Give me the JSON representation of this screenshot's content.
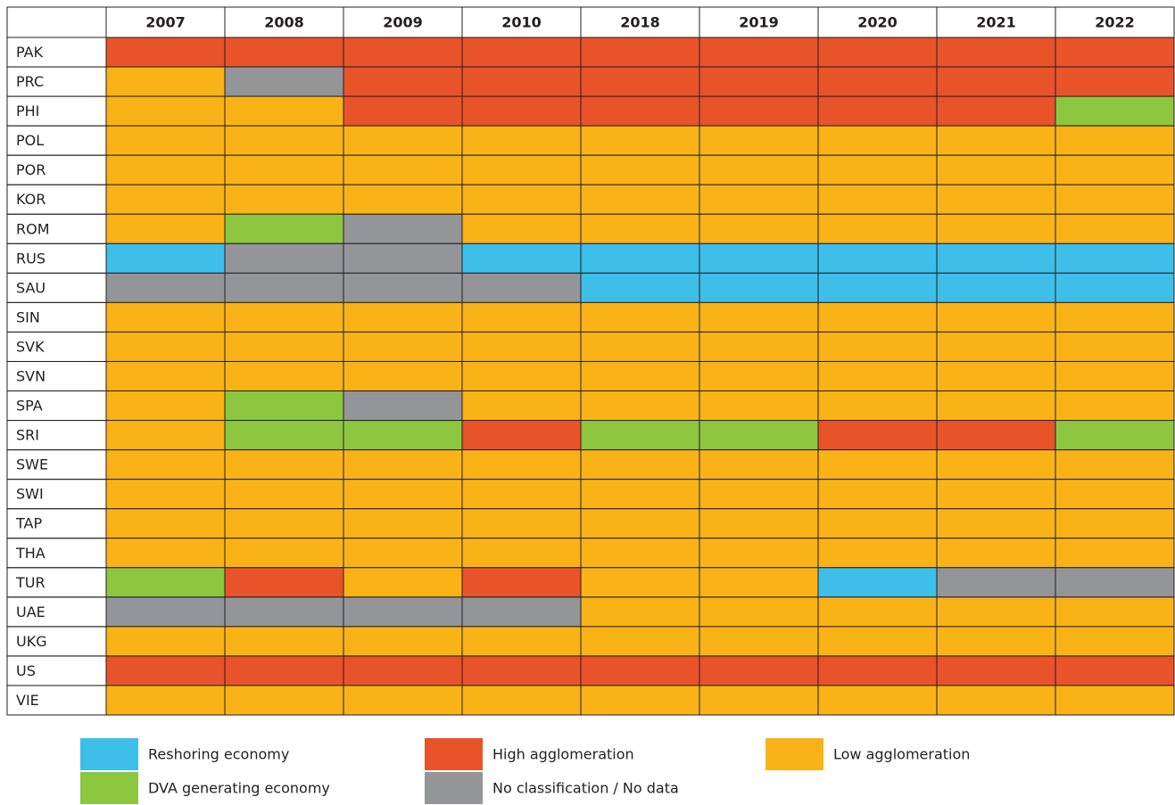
{
  "chart_data": {
    "type": "heatmap",
    "x": [
      "2007",
      "2008",
      "2009",
      "2010",
      "2018",
      "2019",
      "2020",
      "2021",
      "2022"
    ],
    "y": [
      "PAK",
      "PRC",
      "PHI",
      "POL",
      "POR",
      "KOR",
      "ROM",
      "RUS",
      "SAU",
      "SIN",
      "SVK",
      "SVN",
      "SPA",
      "SRI",
      "SWE",
      "SWI",
      "TAP",
      "THA",
      "TUR",
      "UAE",
      "UKG",
      "US",
      "VIE"
    ],
    "legend": [
      {
        "name": "Reshoring economy",
        "color": "#3dbfea"
      },
      {
        "name": "DVA generating economy",
        "color": "#8dc63f"
      },
      {
        "name": "High agglomeration",
        "color": "#e9532a"
      },
      {
        "name": "No classification / No data",
        "color": "#939598"
      },
      {
        "name": "Low agglomeration",
        "color": "#f9b317"
      }
    ],
    "cells": [
      [
        2,
        2,
        2,
        2,
        2,
        2,
        2,
        2,
        2
      ],
      [
        4,
        3,
        2,
        2,
        2,
        2,
        2,
        2,
        2
      ],
      [
        4,
        4,
        2,
        2,
        2,
        2,
        2,
        2,
        1
      ],
      [
        4,
        4,
        4,
        4,
        4,
        4,
        4,
        4,
        4
      ],
      [
        4,
        4,
        4,
        4,
        4,
        4,
        4,
        4,
        4
      ],
      [
        4,
        4,
        4,
        4,
        4,
        4,
        4,
        4,
        4
      ],
      [
        4,
        1,
        3,
        4,
        4,
        4,
        4,
        4,
        4
      ],
      [
        0,
        3,
        3,
        0,
        0,
        0,
        0,
        0,
        0
      ],
      [
        3,
        3,
        3,
        3,
        0,
        0,
        0,
        0,
        0
      ],
      [
        4,
        4,
        4,
        4,
        4,
        4,
        4,
        4,
        4
      ],
      [
        4,
        4,
        4,
        4,
        4,
        4,
        4,
        4,
        4
      ],
      [
        4,
        4,
        4,
        4,
        4,
        4,
        4,
        4,
        4
      ],
      [
        4,
        1,
        3,
        4,
        4,
        4,
        4,
        4,
        4
      ],
      [
        4,
        1,
        1,
        2,
        1,
        1,
        2,
        2,
        1
      ],
      [
        4,
        4,
        4,
        4,
        4,
        4,
        4,
        4,
        4
      ],
      [
        4,
        4,
        4,
        4,
        4,
        4,
        4,
        4,
        4
      ],
      [
        4,
        4,
        4,
        4,
        4,
        4,
        4,
        4,
        4
      ],
      [
        4,
        4,
        4,
        4,
        4,
        4,
        4,
        4,
        4
      ],
      [
        1,
        2,
        4,
        2,
        4,
        4,
        0,
        3,
        3
      ],
      [
        3,
        3,
        3,
        3,
        4,
        4,
        4,
        4,
        4
      ],
      [
        4,
        4,
        4,
        4,
        4,
        4,
        4,
        4,
        4
      ],
      [
        2,
        2,
        2,
        2,
        2,
        2,
        2,
        2,
        2
      ],
      [
        4,
        4,
        4,
        4,
        4,
        4,
        4,
        4,
        4
      ]
    ]
  }
}
